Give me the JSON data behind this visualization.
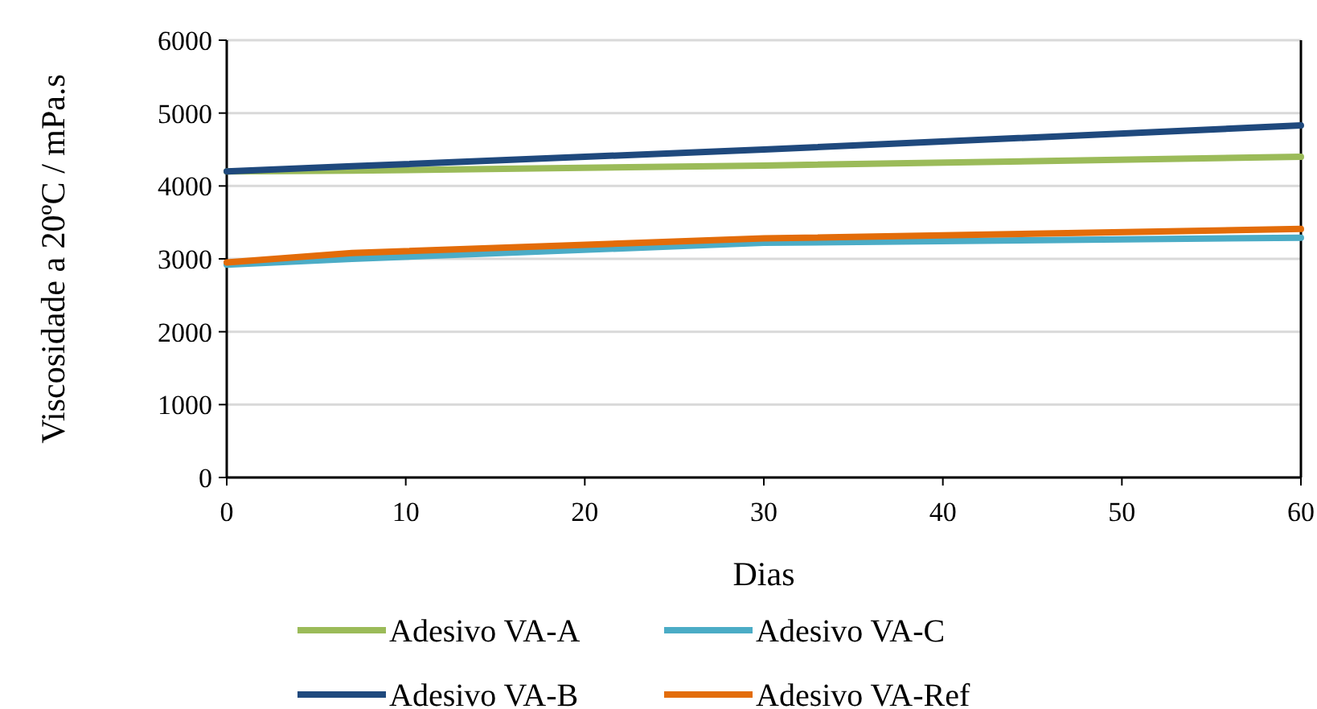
{
  "chart_data": {
    "type": "line",
    "xlabel": "Dias",
    "ylabel": "Viscosidade a 20ºC / mPa.s",
    "x": [
      0,
      7,
      30,
      60
    ],
    "xlim": [
      0,
      60
    ],
    "xticks": [
      0,
      10,
      20,
      30,
      40,
      50,
      60
    ],
    "ylim": [
      0,
      6000
    ],
    "yticks": [
      0,
      1000,
      2000,
      3000,
      4000,
      5000,
      6000
    ],
    "grid": "y",
    "legend": "bottom",
    "marker": "none",
    "line_style": "solid",
    "series": [
      {
        "name": "Adesivo VA-A",
        "color": "#9bbb59",
        "values": [
          4200,
          4210,
          4280,
          4400
        ]
      },
      {
        "name": "Adesivo VA-C",
        "color": "#4bacc6",
        "values": [
          2920,
          3000,
          3220,
          3290
        ]
      },
      {
        "name": "Adesivo VA-B",
        "color": "#1f497d",
        "values": [
          4200,
          4270,
          4500,
          4830
        ]
      },
      {
        "name": "Adesivo VA-Ref",
        "color": "#e36c09",
        "values": [
          2950,
          3080,
          3280,
          3410
        ]
      }
    ]
  }
}
